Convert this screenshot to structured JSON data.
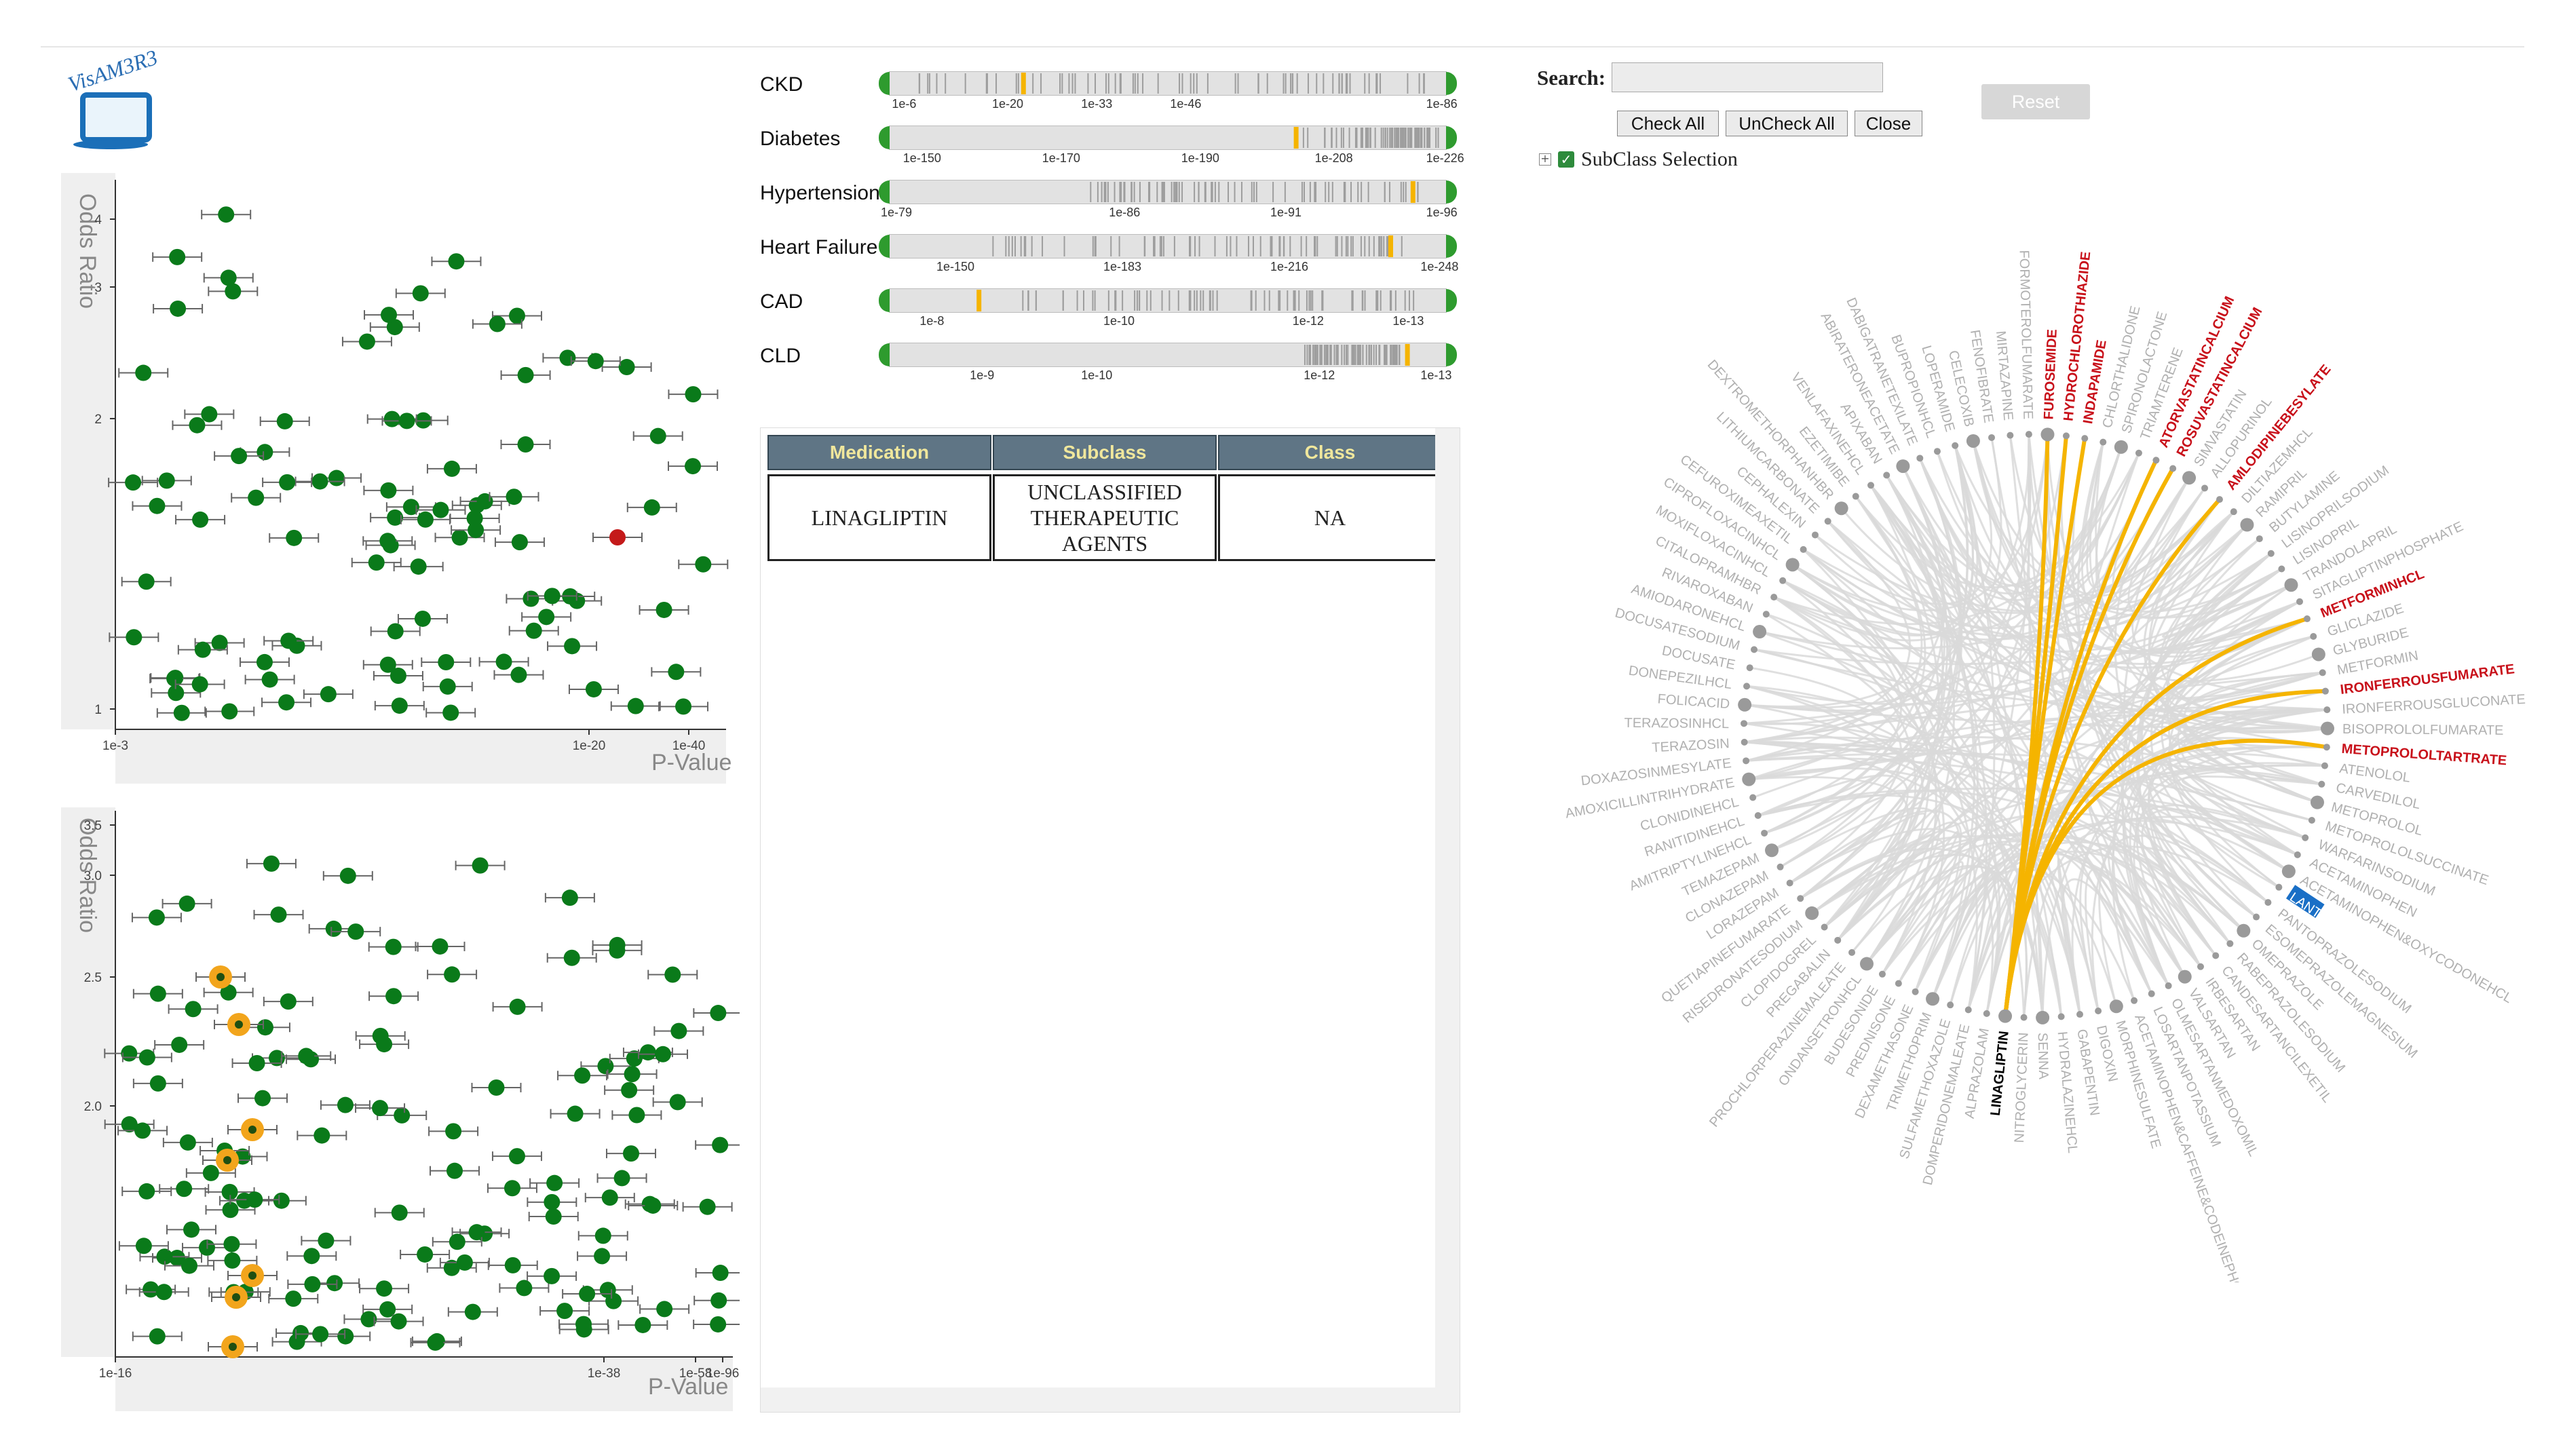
{
  "logo": {
    "text": "VisAM3R3"
  },
  "plot_top": {
    "y_title": "Odds Ratio",
    "x_title": "P-Value",
    "y_ticks": [
      "4",
      "3",
      "2",
      "1"
    ],
    "x_ticks": [
      "1e-3",
      "1e-20",
      "1e-40"
    ]
  },
  "plot_bottom": {
    "y_title": "Odds Ratio",
    "x_title": "P-Value",
    "y_ticks": [
      "3.5",
      "3.0",
      "2.5",
      "2.0"
    ],
    "x_ticks": [
      "1e-16",
      "1e-38",
      "1e-58",
      "1e-96"
    ]
  },
  "diseases": [
    {
      "name": "CKD",
      "ticks": [
        "1e-6",
        "1e-20",
        "1e-33",
        "1e-46",
        "1e-86"
      ]
    },
    {
      "name": "Diabetes",
      "ticks": [
        "1e-150",
        "1e-170",
        "1e-190",
        "1e-208",
        "1e-226"
      ]
    },
    {
      "name": "Hypertension",
      "ticks": [
        "1e-79",
        "1e-86",
        "1e-91",
        "1e-96"
      ]
    },
    {
      "name": "Heart Failure",
      "ticks": [
        "1e-150",
        "1e-183",
        "1e-216",
        "1e-248"
      ]
    },
    {
      "name": "CAD",
      "ticks": [
        "1e-8",
        "1e-10",
        "1e-12",
        "1e-13"
      ]
    },
    {
      "name": "CLD",
      "ticks": [
        "1e-9",
        "1e-10",
        "1e-12",
        "1e-13"
      ]
    }
  ],
  "table": {
    "headers": [
      "Medication",
      "Subclass",
      "Class"
    ],
    "row": {
      "medication": "LINAGLIPTIN",
      "subclass_1": "UNCLASSIFIED",
      "subclass_2": "THERAPEUTIC",
      "subclass_3": "AGENTS",
      "class": "NA"
    }
  },
  "controls": {
    "search_label": "Search:",
    "search_value": "",
    "check_all": "Check All",
    "uncheck_all": "UnCheck All",
    "close": "Close",
    "reset": "Reset",
    "tree_label": "SubClass Selection"
  },
  "radial": {
    "center_label": "LINAGLIPTIN",
    "highlight_color": "#f5b400",
    "link_color": "#d9d9d9",
    "highlight_nodes": [
      "FUROSEMIDE",
      "HYDROCHLOROTHIAZIDE",
      "INDAPAMIDE",
      "ATORVASTATINCALCIUM",
      "ROSUVASTATINCALCIUM",
      "AMLODIPINEBESYLATE",
      "METFORMINHCL",
      "IRONFERROUSFUMARATE",
      "METOPROLOLTARTRATE"
    ],
    "nodes": [
      "LINAGLIPTIN",
      "ALPRAZOLAM",
      "DOMPERIDONEMALEATE",
      "SULFAMETHOXAZOLE",
      "TRIMETHOPRIM",
      "DEXAMETHASONE",
      "PREDNISONE",
      "BUDESONIDE",
      "ONDANSETRONHCL",
      "PROCHLORPERAZINEMALEATE",
      "PREGABALIN",
      "CLOPIDOGREL",
      "RISEDRONATESODIUM",
      "QUETIAPINEFUMARATE",
      "LORAZEPAM",
      "CLONAZEPAM",
      "TEMAZEPAM",
      "AMITRIPTYLINEHCL",
      "RANITIDINEHCL",
      "CLONIDINEHCL",
      "AMOXICILLINTRIHYDRATE",
      "DOXAZOSINMESYLATE",
      "TERAZOSIN",
      "TERAZOSINHCL",
      "FOLICACID",
      "DONEPEZILHCL",
      "DOCUSATE",
      "DOCUSATESODIUM",
      "AMIODARONEHCL",
      "RIVAROXABAN",
      "CITALOPRAMHBR",
      "MOXIFLOXACINHCL",
      "CIPROFLOXACINHCL",
      "CEFUROXIMEAXETIL",
      "CEPHALEXIN",
      "LITHIUMCARBONATE",
      "DEXTROMETHORPHANHBR",
      "EZETIMIBE",
      "VENLAFAXINEHCL",
      "APIXABAN",
      "ABIRATERONEACETATE",
      "DABIGATRANETEXILATE",
      "BUPROPIONHCL",
      "LOPERAMIDE",
      "CELECOXIB",
      "FENOFIBRATE",
      "MIRTAZAPINE",
      "FORMOTEROLFUMARATE",
      "FUROSEMIDE",
      "HYDROCHLOROTHIAZIDE",
      "INDAPAMIDE",
      "CHLORTHALIDONE",
      "SPIRONOLACTONE",
      "TRIAMTERENE",
      "ATORVASTATINCALCIUM",
      "ROSUVASTATINCALCIUM",
      "SIMVASTATIN",
      "ALLOPURINOL",
      "AMLODIPINEBESYLATE",
      "DILTIAZEMHCL",
      "RAMIPRIL",
      "BUTYLAMINE",
      "LISINOPRILSODIUM",
      "LISINOPRIL",
      "TRANDOLAPRIL",
      "SITAGLIPTINPHOSPHATE",
      "METFORMINHCL",
      "GLICLAZIDE",
      "GLYBURIDE",
      "METFORMIN",
      "IRONFERROUSFUMARATE",
      "IRONFERROUSGLUCONATE",
      "BISOPROLOLFUMARATE",
      "METOPROLOLTARTRATE",
      "ATENOLOL",
      "CARVEDILOL",
      "METOPROLOL",
      "METOPROLOLSUCCINATE",
      "WARFARINSODIUM",
      "ACETAMINOPHEN",
      "ACETAMINOPHEN&OXYCODONEHCL",
      "LANT",
      "PANTOPRAZOLESODIUM",
      "ESOMEPRAZOLEMAGNESIUM",
      "OMEPRAZOLE",
      "RABEPRAZOLESODIUM",
      "CANDESARTANCILEXETIL",
      "IRBESARTAN",
      "VALSARTAN",
      "OLMESARTANMEDOXOMIL",
      "LOSARTANPOTASSIUM",
      "ACETAMINOPHEN&CAFFEINE&CODEINEPHOSPHATE",
      "MORPHINESULFATE",
      "DIGOXIN",
      "GABAPENTIN",
      "HYDRALAZINEHCL",
      "SENNA",
      "NITROGLYCERIN"
    ]
  }
}
